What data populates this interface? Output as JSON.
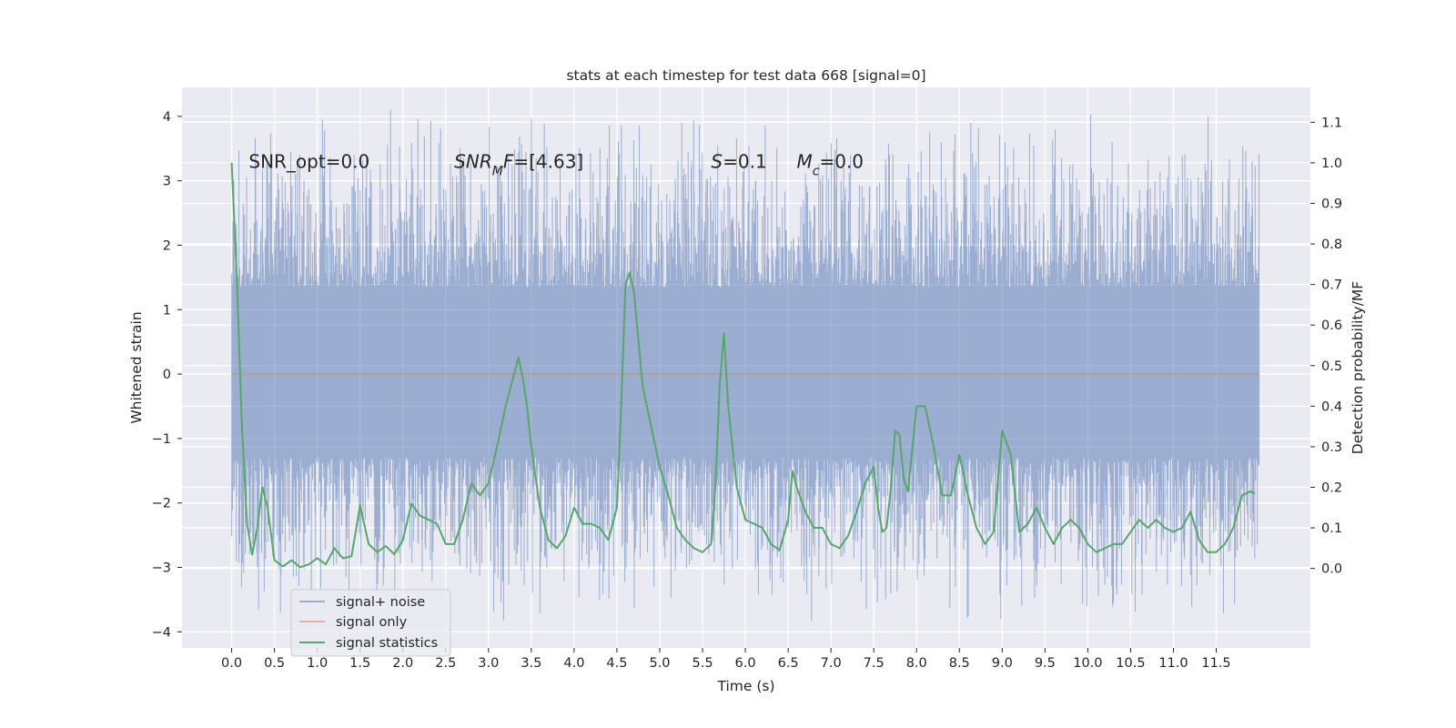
{
  "chart_data": {
    "type": "line",
    "title": "stats at each timestep for test data 668 [signal=0]",
    "xlabel": "Time (s)",
    "ylabel": "Whitened strain",
    "ylabel_right": "Detection probability/MF",
    "xlim": [
      -0.58,
      12.6
    ],
    "ylim": [
      -4.25,
      4.45
    ],
    "ylim_right": [
      -0.196,
      1.186
    ],
    "x_ticks": [
      0.0,
      0.5,
      1.0,
      1.5,
      2.0,
      2.5,
      3.0,
      3.5,
      4.0,
      4.5,
      5.0,
      5.5,
      6.0,
      6.5,
      7.0,
      7.5,
      8.0,
      8.5,
      9.0,
      9.5,
      10.0,
      10.5,
      11.0,
      11.5
    ],
    "x_tick_labels": [
      "0.0",
      "0.5",
      "1.0",
      "1.5",
      "2.0",
      "2.5",
      "3.0",
      "3.5",
      "4.0",
      "4.5",
      "5.0",
      "5.5",
      "6.0",
      "6.5",
      "7.0",
      "7.5",
      "8.0",
      "8.5",
      "9.0",
      "9.5",
      "10.0",
      "10.5",
      "11.0",
      "11.5"
    ],
    "y_ticks": [
      -4,
      -3,
      -2,
      -1,
      0,
      1,
      2,
      3,
      4
    ],
    "y_tick_labels": [
      "−4",
      "−3",
      "−2",
      "−1",
      "0",
      "1",
      "2",
      "3",
      "4"
    ],
    "y_ticks_right": [
      0.0,
      0.1,
      0.2,
      0.3,
      0.4,
      0.5,
      0.6,
      0.7,
      0.8,
      0.9,
      1.0,
      1.1
    ],
    "y_tick_labels_right": [
      "0.0",
      "0.1",
      "0.2",
      "0.3",
      "0.4",
      "0.5",
      "0.6",
      "0.7",
      "0.8",
      "0.9",
      "1.0",
      "1.1"
    ],
    "grid": true,
    "legend_position": "bottom-left",
    "annotations": [
      {
        "plain": "SNR_opt=0.0",
        "x": 0.2,
        "y": 3.3
      },
      {
        "italic": "SNR",
        "sub": "M",
        "italic2": "F",
        "rest": "=[4.63]",
        "x": 2.6,
        "y": 3.3
      },
      {
        "italic": "S",
        "rest": "=0.1",
        "x": 5.6,
        "y": 3.3
      },
      {
        "italic": "M",
        "sub": "c",
        "rest": "=0.0",
        "x": 6.6,
        "y": 3.3
      }
    ],
    "series": [
      {
        "name": "signal+ noise",
        "color": "#4c72b0",
        "axis": "left",
        "kind": "noise",
        "duration": 12.0,
        "envelope_typical": [
          -1.3,
          1.35
        ],
        "range": [
          -3.85,
          4.1
        ]
      },
      {
        "name": "signal only",
        "color": "#dd8452",
        "axis": "left",
        "x": [
          0.0,
          12.0
        ],
        "y": [
          0.0,
          0.0
        ]
      },
      {
        "name": "signal statistics",
        "color": "#55a868",
        "axis": "right",
        "x": [
          0.0,
          0.06,
          0.12,
          0.18,
          0.24,
          0.3,
          0.36,
          0.42,
          0.5,
          0.6,
          0.7,
          0.8,
          0.9,
          1.0,
          1.1,
          1.2,
          1.3,
          1.4,
          1.5,
          1.6,
          1.7,
          1.8,
          1.9,
          2.0,
          2.1,
          2.2,
          2.3,
          2.4,
          2.5,
          2.6,
          2.7,
          2.8,
          2.9,
          3.0,
          3.1,
          3.2,
          3.3,
          3.35,
          3.4,
          3.45,
          3.5,
          3.6,
          3.7,
          3.8,
          3.9,
          4.0,
          4.1,
          4.2,
          4.3,
          4.4,
          4.5,
          4.55,
          4.6,
          4.65,
          4.7,
          4.8,
          4.9,
          5.0,
          5.1,
          5.2,
          5.3,
          5.4,
          5.5,
          5.6,
          5.65,
          5.7,
          5.75,
          5.8,
          5.9,
          6.0,
          6.1,
          6.2,
          6.3,
          6.4,
          6.5,
          6.55,
          6.6,
          6.7,
          6.8,
          6.9,
          7.0,
          7.1,
          7.2,
          7.3,
          7.4,
          7.5,
          7.55,
          7.6,
          7.65,
          7.7,
          7.75,
          7.8,
          7.85,
          7.9,
          8.0,
          8.05,
          8.1,
          8.2,
          8.3,
          8.4,
          8.5,
          8.6,
          8.7,
          8.8,
          8.9,
          9.0,
          9.1,
          9.2,
          9.3,
          9.4,
          9.5,
          9.6,
          9.7,
          9.8,
          9.9,
          10.0,
          10.1,
          10.2,
          10.3,
          10.4,
          10.5,
          10.6,
          10.7,
          10.8,
          10.9,
          11.0,
          11.1,
          11.2,
          11.3,
          11.4,
          11.5,
          11.6,
          11.7,
          11.8,
          11.9,
          11.95
        ],
        "y": [
          1.0,
          0.72,
          0.35,
          0.11,
          0.034,
          0.1,
          0.2,
          0.15,
          0.02,
          0.005,
          0.02,
          0.003,
          0.01,
          0.025,
          0.01,
          0.05,
          0.025,
          0.03,
          0.155,
          0.06,
          0.04,
          0.055,
          0.035,
          0.07,
          0.16,
          0.13,
          0.12,
          0.11,
          0.06,
          0.06,
          0.12,
          0.21,
          0.18,
          0.21,
          0.3,
          0.4,
          0.48,
          0.52,
          0.47,
          0.4,
          0.3,
          0.15,
          0.07,
          0.05,
          0.08,
          0.15,
          0.11,
          0.11,
          0.1,
          0.07,
          0.15,
          0.4,
          0.7,
          0.73,
          0.68,
          0.45,
          0.35,
          0.25,
          0.18,
          0.1,
          0.07,
          0.05,
          0.04,
          0.06,
          0.2,
          0.45,
          0.58,
          0.4,
          0.2,
          0.12,
          0.11,
          0.1,
          0.06,
          0.045,
          0.12,
          0.24,
          0.2,
          0.14,
          0.1,
          0.1,
          0.06,
          0.05,
          0.08,
          0.14,
          0.21,
          0.25,
          0.15,
          0.09,
          0.1,
          0.2,
          0.34,
          0.33,
          0.22,
          0.19,
          0.4,
          0.4,
          0.4,
          0.3,
          0.18,
          0.18,
          0.28,
          0.18,
          0.1,
          0.06,
          0.09,
          0.34,
          0.28,
          0.09,
          0.11,
          0.15,
          0.1,
          0.06,
          0.1,
          0.12,
          0.1,
          0.06,
          0.04,
          0.05,
          0.06,
          0.06,
          0.09,
          0.12,
          0.1,
          0.12,
          0.1,
          0.09,
          0.1,
          0.14,
          0.07,
          0.04,
          0.04,
          0.06,
          0.1,
          0.18,
          0.19,
          0.185
        ]
      }
    ]
  }
}
